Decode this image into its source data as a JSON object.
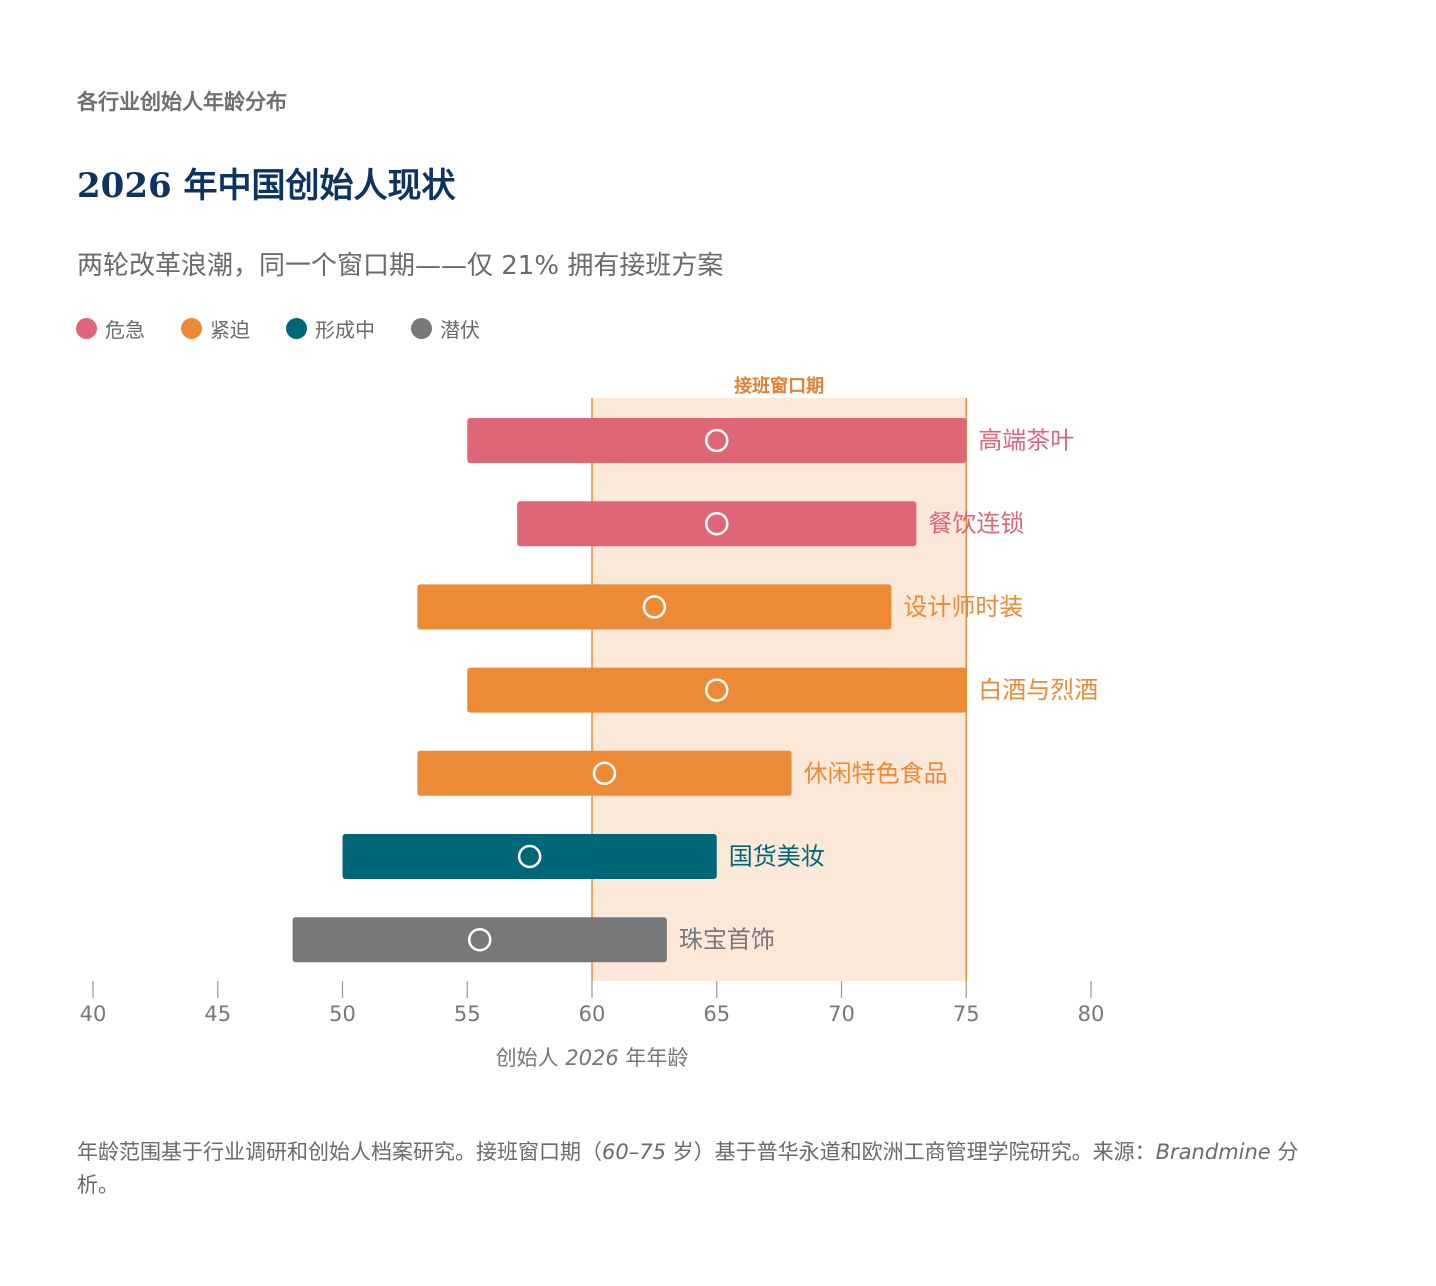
{
  "header": {
    "eyebrow": "各行业创始人年龄分布",
    "title": "2026 年中国创始人现状",
    "subtitle": "两轮改革浪潮，同一个窗口期——仅 21% 拥有接班方案"
  },
  "legend": [
    {
      "label": "危急",
      "color": "#de6677"
    },
    {
      "label": "紧迫",
      "color": "#ec8a35"
    },
    {
      "label": "形成中",
      "color": "#006778"
    },
    {
      "label": "潜伏",
      "color": "#76787a"
    }
  ],
  "chart_data": {
    "type": "range-bar",
    "xlabel_prefix": "创始人",
    "xlabel_year": "2026",
    "xlabel_suffix": "年年龄",
    "xlim": [
      40,
      80
    ],
    "xticks": [
      "40",
      "45",
      "50",
      "55",
      "60",
      "65",
      "70",
      "75",
      "80"
    ],
    "window": {
      "label": "接班窗口期",
      "start": 60,
      "end": 75,
      "color": "#ec8a35",
      "fill": "#fce8d9"
    },
    "rows": [
      {
        "label": "高端茶叶",
        "min": 55,
        "max": 75,
        "median": 65,
        "status": "危急",
        "color": "#de6677"
      },
      {
        "label": "餐饮连锁",
        "min": 57,
        "max": 73,
        "median": 65,
        "status": "危急",
        "color": "#de6677"
      },
      {
        "label": "设计师时装",
        "min": 53,
        "max": 72,
        "median": 62.5,
        "status": "紧迫",
        "color": "#ec8a35"
      },
      {
        "label": "白酒与烈酒",
        "min": 55,
        "max": 75,
        "median": 65,
        "status": "紧迫",
        "color": "#ec8a35"
      },
      {
        "label": "休闲特色食品",
        "min": 53,
        "max": 68,
        "median": 60.5,
        "status": "紧迫",
        "color": "#ec8a35"
      },
      {
        "label": "国货美妆",
        "min": 50,
        "max": 65,
        "median": 57.5,
        "status": "形成中",
        "color": "#006778"
      },
      {
        "label": "珠宝首饰",
        "min": 48,
        "max": 63,
        "median": 55.5,
        "status": "潜伏",
        "color": "#76787a"
      }
    ]
  },
  "footnote": {
    "part1": "年龄范围基于行业调研和创始人档案研究。接班窗口期（",
    "range": "60–75",
    "part2": " 岁）基于普华永道和欧洲工商管理学院研究。来源：",
    "source": "Brandmine",
    "part3": " 分析。"
  }
}
